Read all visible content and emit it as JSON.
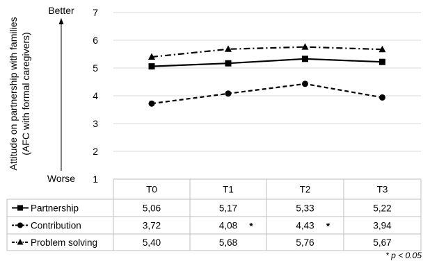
{
  "chart_data": {
    "type": "line",
    "ylabel": "Attitude on partnership with families",
    "ylabel_sub": "(AFC with formal caregivers)",
    "y_top_label": "Better",
    "y_bottom_label": "Worse",
    "ylim": [
      1,
      7
    ],
    "yticks": [
      "1",
      "2",
      "3",
      "4",
      "5",
      "6",
      "7"
    ],
    "grid": true,
    "categories": [
      "T0",
      "T1",
      "T2",
      "T3"
    ],
    "series": [
      {
        "name": "Partnership",
        "values": [
          5.06,
          5.17,
          5.33,
          5.22
        ],
        "labels": [
          "5,06",
          "5,17",
          "5,33",
          "5,22"
        ],
        "marker": "square",
        "line_style": "solid",
        "significant": [
          false,
          false,
          false,
          false
        ]
      },
      {
        "name": "Contribution",
        "values": [
          3.72,
          4.08,
          4.43,
          3.94
        ],
        "labels": [
          "3,72",
          "4,08",
          "4,43",
          "3,94"
        ],
        "marker": "circle",
        "line_style": "dashed",
        "significant": [
          false,
          true,
          true,
          false
        ]
      },
      {
        "name": "Problem solving",
        "values": [
          5.4,
          5.68,
          5.76,
          5.67
        ],
        "labels": [
          "5,40",
          "5,68",
          "5,76",
          "5,67"
        ],
        "marker": "triangle",
        "line_style": "dashdot",
        "significant": [
          false,
          false,
          false,
          false
        ]
      }
    ],
    "significance_marker": "*",
    "footnote": "* p < 0.05",
    "colors": {
      "line": "#000000",
      "grid": "#d9d9d9",
      "table_border": "#bfbfbf"
    }
  }
}
